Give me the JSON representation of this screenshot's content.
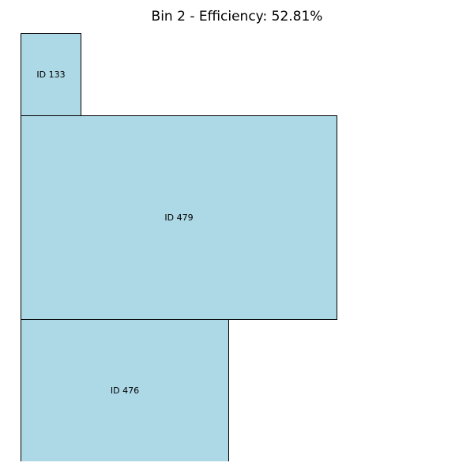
{
  "title": "Bin 2 - Efficiency: 52.81%",
  "fill_color": "#add8e6",
  "border_color": "#000000",
  "items": [
    {
      "label": "ID 133"
    },
    {
      "label": "ID 479"
    },
    {
      "label": "ID 476"
    }
  ]
}
